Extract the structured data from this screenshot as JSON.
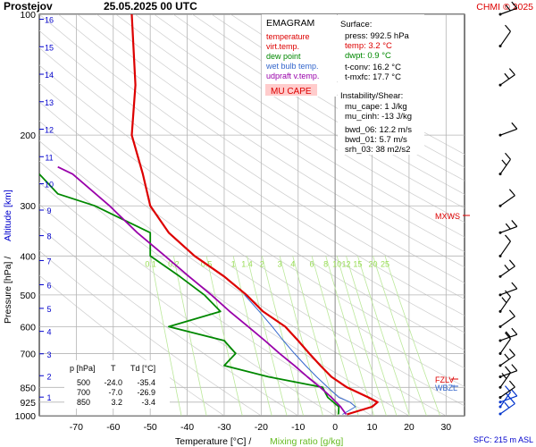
{
  "header": {
    "station": "Prostejov",
    "datetime": "25.05.2025 00 UTC",
    "credit": "CHMI © 2025"
  },
  "legend": {
    "title": "EMAGRAM",
    "items": [
      {
        "label": "temperature",
        "color": "#dd0000"
      },
      {
        "label": "virt.temp.",
        "color": "#dd0000"
      },
      {
        "label": "dew point",
        "color": "#008800"
      },
      {
        "label": "wet bulb temp.",
        "color": "#3366cc"
      },
      {
        "label": "udpraft v.temp.",
        "color": "#9900aa"
      }
    ],
    "badge": "MU CAPE"
  },
  "info": {
    "surface_title": "Surface:",
    "surface": [
      {
        "text": "press: 992.5 hPa",
        "color": "#000000"
      },
      {
        "text": "temp: 3.2 °C",
        "color": "#dd0000"
      },
      {
        "text": "dwpt: 0.9 °C",
        "color": "#008800"
      }
    ],
    "convective": [
      "t-conv: 16.2 °C",
      "t-mxfc: 17.7 °C"
    ],
    "instability_title": "Instability/Shear:",
    "instability": [
      "mu_cape: 1 J/kg",
      "mu_cinh: -13 J/kg"
    ],
    "shear": [
      "bwd_06: 12.2 m/s",
      "bwd_01: 5.7 m/s",
      "srh_03: 38 m2/s2"
    ]
  },
  "table": {
    "headers": [
      "p [hPa]",
      "T",
      "Td [°C]"
    ],
    "rows": [
      [
        "500",
        "-24.0",
        "-35.4"
      ],
      [
        "700",
        "-7.0",
        "-26.9"
      ],
      [
        "850",
        "3.2",
        "-3.4"
      ]
    ]
  },
  "labels": {
    "mxws": "MXWS",
    "fzlv": "FZLV",
    "wbzl": "WBZL",
    "sfc": "SFC: 215 m ASL",
    "xlabel_main": "Temperature [°C]  /",
    "xlabel_mix": "Mixing ratio [g/kg]",
    "ylabel_main": "Pressure [hPa]  /",
    "ylabel_alt": "Altitude [km]"
  },
  "colors": {
    "temperature": "#dd0000",
    "dewpoint": "#008800",
    "wetbulb": "#3366cc",
    "parcel": "#9900aa",
    "mixing": "#99dd55",
    "altitude": "#0000cc",
    "grid": "#b4b4b4"
  },
  "chart_data": {
    "type": "line",
    "title": "Prostejov   25.05.2025 00 UTC",
    "xlabel": "Temperature [°C]  /  Mixing ratio [g/kg]",
    "ylabel": "Pressure [hPa]  /  Altitude [km]",
    "x_axis": {
      "range": [
        -80,
        35
      ],
      "ticks": [
        -70,
        -60,
        -50,
        -40,
        -30,
        -20,
        -10,
        0,
        10,
        20,
        30
      ]
    },
    "y_axis": {
      "scale": "log",
      "range": [
        1000,
        100
      ],
      "ticks": [
        100,
        200,
        300,
        400,
        500,
        600,
        700,
        850,
        925,
        1000
      ]
    },
    "altitude_ticks_km": [
      1,
      2,
      3,
      4,
      5,
      6,
      7,
      8,
      9,
      10,
      11,
      12,
      13,
      14,
      15,
      16
    ],
    "mixing_ratio_labels": [
      "0.1",
      "0.2",
      "0.5",
      "1",
      "1.4",
      "2",
      "3",
      "4",
      "6",
      "8",
      "10",
      "12",
      "15",
      "20",
      "25"
    ],
    "series": [
      {
        "name": "temperature",
        "p": [
          992.5,
          950,
          925,
          900,
          850,
          800,
          750,
          700,
          650,
          600,
          550,
          500,
          450,
          400,
          350,
          300,
          250,
          200,
          150,
          100
        ],
        "t": [
          3.2,
          10.0,
          11.5,
          9.0,
          3.2,
          -1.0,
          -4.0,
          -7.0,
          -10.0,
          -13.5,
          -19.5,
          -24.0,
          -30.0,
          -38.0,
          -45.0,
          -50.0,
          -52.0,
          -55.0,
          -54.0,
          -55.0
        ]
      },
      {
        "name": "dew point",
        "p": [
          992.5,
          950,
          900,
          850,
          800,
          750,
          700,
          650,
          600,
          550,
          500,
          450,
          400,
          350,
          300,
          280,
          250
        ],
        "t": [
          0.9,
          1.0,
          -2.0,
          -3.4,
          -18.0,
          -30.0,
          -26.9,
          -30.0,
          -45.0,
          -31.0,
          -35.4,
          -42.0,
          -50.0,
          -50.0,
          -65.0,
          -75.0,
          -80.0
        ]
      },
      {
        "name": "wet bulb temp.",
        "p": [
          992.5,
          950,
          925,
          900,
          850,
          800,
          750,
          700,
          650,
          600,
          550,
          500
        ],
        "t": [
          2.0,
          5.5,
          4.0,
          1.0,
          -2.0,
          -5.0,
          -8.0,
          -11.0,
          -14.0,
          -17.0,
          -20.5,
          -24.5
        ]
      },
      {
        "name": "udpraft v.temp.",
        "p": [
          992.5,
          950,
          900,
          850,
          800,
          750,
          700,
          650,
          600,
          550,
          500,
          450,
          400,
          350,
          300,
          250,
          240
        ],
        "t": [
          3.0,
          1.5,
          -1.0,
          -4.0,
          -7.5,
          -11.0,
          -15.0,
          -19.0,
          -23.5,
          -28.5,
          -33.5,
          -39.5,
          -46.0,
          -53.5,
          -61.0,
          -71.0,
          -75.0
        ]
      }
    ]
  }
}
